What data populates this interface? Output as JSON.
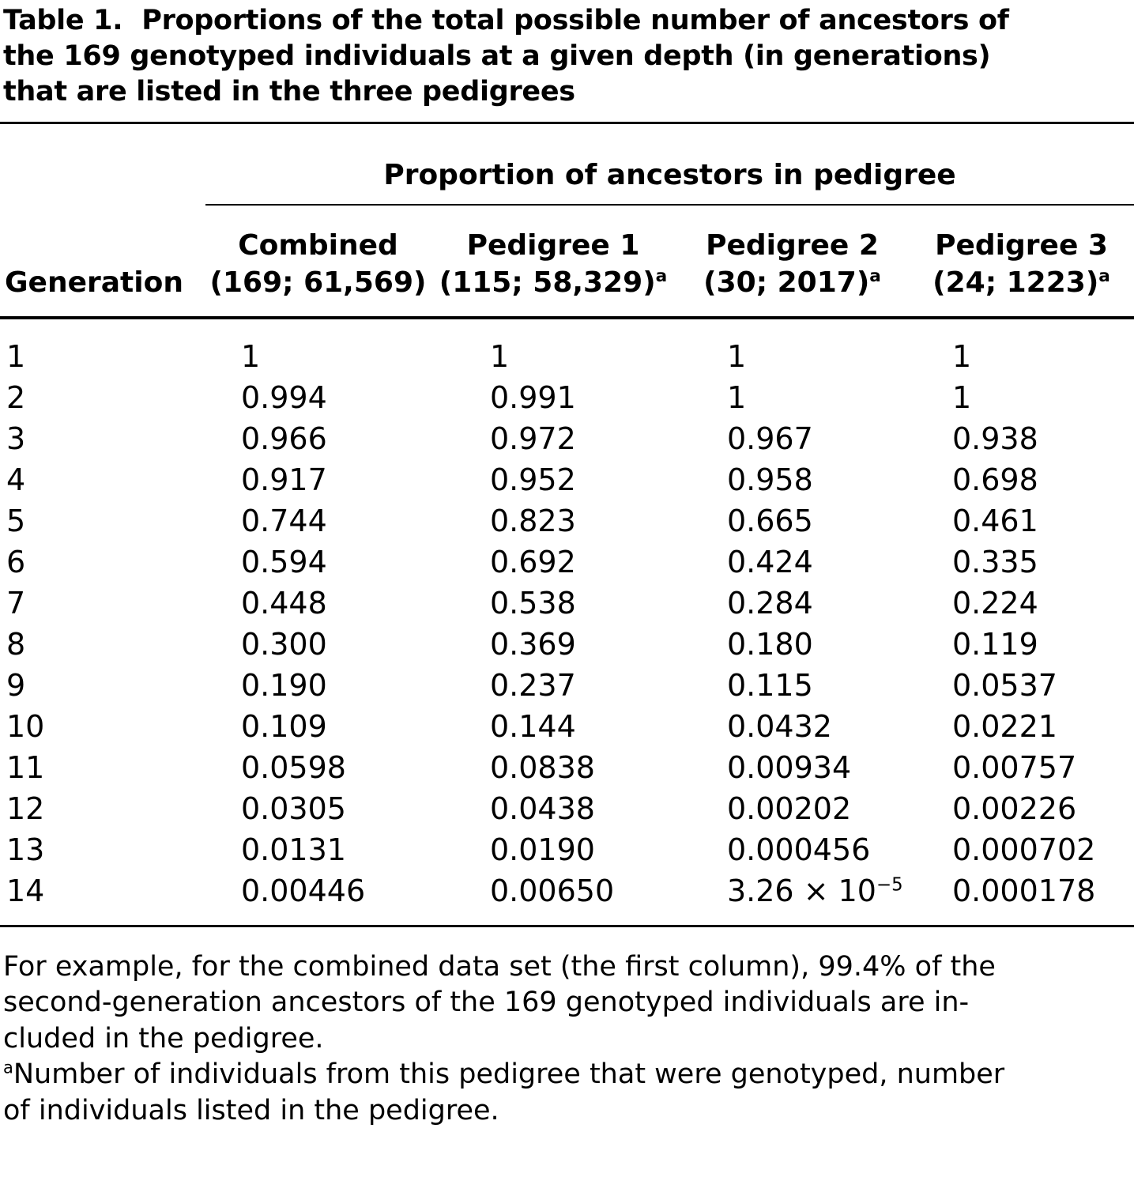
{
  "title": {
    "label": "Table 1.",
    "text": "Proportions of the total possible number of ancestors of\nthe 169 genotyped individuals at a given depth (in generations)\nthat are listed in the three pedigrees"
  },
  "colors": {
    "text": "#000000",
    "background": "#ffffff",
    "rule": "#000000"
  },
  "table": {
    "span_header": "Proportion of ancestors in pedigree",
    "generation_header": "Generation",
    "columns": [
      {
        "name": "Combined",
        "sub": "(169; 61,569)",
        "sup": ""
      },
      {
        "name": "Pedigree 1",
        "sub": "(115; 58,329)",
        "sup": "a"
      },
      {
        "name": "Pedigree 2",
        "sub": "(30; 2017)",
        "sup": "a"
      },
      {
        "name": "Pedigree 3",
        "sub": "(24; 1223)",
        "sup": "a"
      }
    ],
    "rows": [
      {
        "generation": "1",
        "values": [
          "1",
          "1",
          "1",
          "1"
        ]
      },
      {
        "generation": "2",
        "values": [
          "0.994",
          "0.991",
          "1",
          "1"
        ]
      },
      {
        "generation": "3",
        "values": [
          "0.966",
          "0.972",
          "0.967",
          "0.938"
        ]
      },
      {
        "generation": "4",
        "values": [
          "0.917",
          "0.952",
          "0.958",
          "0.698"
        ]
      },
      {
        "generation": "5",
        "values": [
          "0.744",
          "0.823",
          "0.665",
          "0.461"
        ]
      },
      {
        "generation": "6",
        "values": [
          "0.594",
          "0.692",
          "0.424",
          "0.335"
        ]
      },
      {
        "generation": "7",
        "values": [
          "0.448",
          "0.538",
          "0.284",
          "0.224"
        ]
      },
      {
        "generation": "8",
        "values": [
          "0.300",
          "0.369",
          "0.180",
          "0.119"
        ]
      },
      {
        "generation": "9",
        "values": [
          "0.190",
          "0.237",
          "0.115",
          "0.0537"
        ]
      },
      {
        "generation": "10",
        "values": [
          "0.109",
          "0.144",
          "0.0432",
          "0.0221"
        ]
      },
      {
        "generation": "11",
        "values": [
          "0.0598",
          "0.0838",
          "0.00934",
          "0.00757"
        ]
      },
      {
        "generation": "12",
        "values": [
          "0.0305",
          "0.0438",
          "0.00202",
          "0.00226"
        ]
      },
      {
        "generation": "13",
        "values": [
          "0.0131",
          "0.0190",
          "0.000456",
          "0.000702"
        ]
      },
      {
        "generation": "14",
        "values": [
          "0.00446",
          "0.00650",
          {
            "base": "3.26 × 10",
            "sup": "−5"
          },
          "0.000178"
        ]
      }
    ]
  },
  "footnotes": {
    "example": "For example, for the combined data set (the first column), 99.4% of the\nsecond-generation ancestors of the 169 genotyped individuals are in-\ncluded in the pedigree.",
    "marker": "a",
    "note_a": "Number of individuals from this pedigree that were genotyped, number\nof individuals listed in the pedigree."
  }
}
